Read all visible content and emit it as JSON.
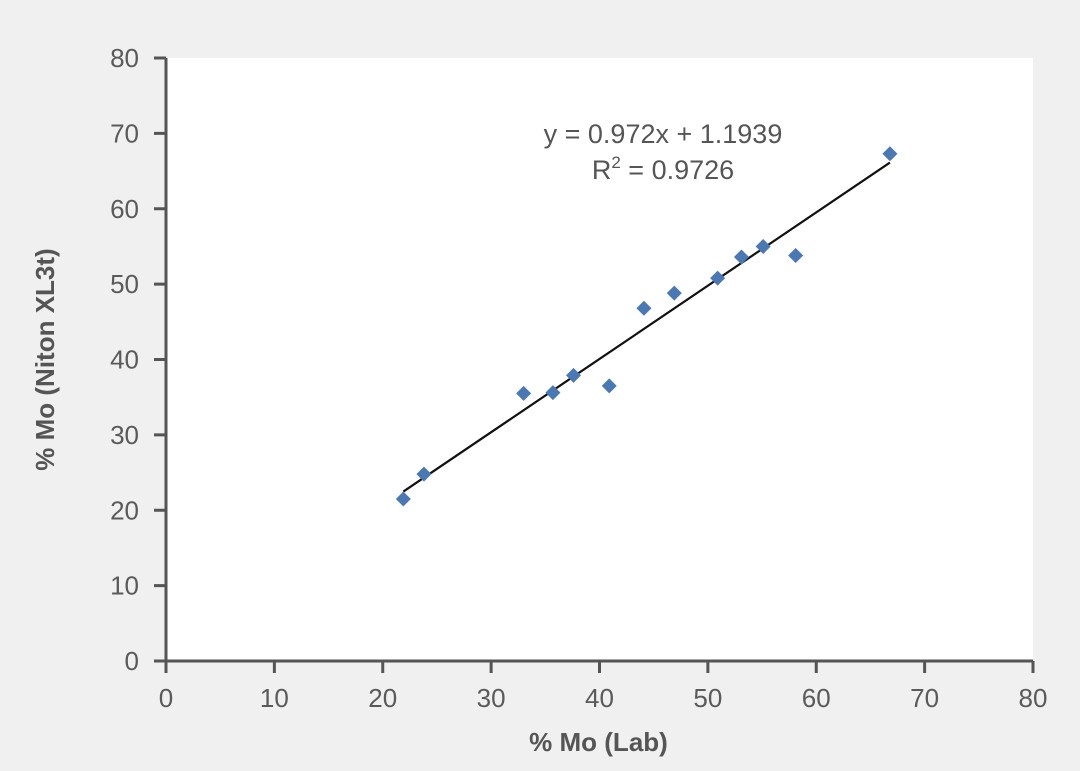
{
  "chart_data": {
    "type": "scatter",
    "xlabel": "% Mo (Lab)",
    "ylabel": "% Mo (Niton XL3t)",
    "xlim": [
      0,
      80
    ],
    "ylim": [
      0,
      80
    ],
    "x_ticks": [
      0,
      10,
      20,
      30,
      40,
      50,
      60,
      70,
      80
    ],
    "y_ticks": [
      0,
      10,
      20,
      30,
      40,
      50,
      60,
      70,
      80
    ],
    "grid": false,
    "legend": "none",
    "series": [
      {
        "marker": "diamond",
        "color": "#4a78b5",
        "points": [
          [
            21.9,
            21.5
          ],
          [
            23.8,
            24.8
          ],
          [
            33.0,
            35.5
          ],
          [
            35.7,
            35.6
          ],
          [
            37.6,
            37.9
          ],
          [
            40.9,
            36.5
          ],
          [
            44.1,
            46.8
          ],
          [
            46.9,
            48.8
          ],
          [
            50.9,
            50.8
          ],
          [
            53.1,
            53.6
          ],
          [
            55.1,
            55.0
          ],
          [
            58.1,
            53.8
          ],
          [
            66.8,
            67.3
          ]
        ]
      }
    ],
    "trendline": {
      "type": "linear",
      "slope": 0.972,
      "intercept": 1.1939,
      "x_range": [
        21.9,
        66.8
      ],
      "color": "#111111"
    },
    "annotations": {
      "equation": "y = 0.972x + 1.1939",
      "r2_label": "R",
      "r2_superscript": "2",
      "r2_value": " = 0.9726"
    },
    "colors": {
      "background": "#f0f0f0",
      "plot_area": "#ffffff",
      "axis": "#555555",
      "marker": "#4a78b5",
      "trendline": "#111111"
    }
  }
}
